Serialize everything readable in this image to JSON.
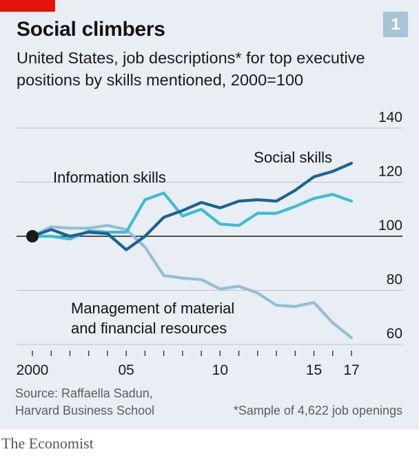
{
  "header": {
    "title": "Social climbers",
    "chart_number": "1",
    "subtitle_line1": "United States, job descriptions* for top executive",
    "subtitle_line2": "positions by skills mentioned, 2000=100"
  },
  "footer": {
    "source_line1": "Source: Raffaella Sadun,",
    "source_line2": "Harvard Business School",
    "footnote": "*Sample of 4,622 job openings",
    "brand": "The Economist"
  },
  "colors": {
    "background": "#e8eef3",
    "red_tag": "#e3120b",
    "badge": "#a7c4d6",
    "social": "#1a6394",
    "information": "#3ebcd2",
    "management": "#93bed6",
    "baseline": "#1a1a1a",
    "grid": "#b7c3cc"
  },
  "chart_data": {
    "type": "line",
    "title": "Social climbers",
    "xlabel": "",
    "ylabel": "",
    "xlim": [
      2000,
      2017.5
    ],
    "ylim": [
      60,
      140
    ],
    "yticks": [
      60,
      80,
      100,
      120,
      140
    ],
    "ytick_labels": [
      "60",
      "80",
      "100",
      "120",
      "140"
    ],
    "xticks": [
      2000,
      2001,
      2002,
      2003,
      2004,
      2005,
      2006,
      2007,
      2008,
      2009,
      2010,
      2011,
      2012,
      2013,
      2014,
      2015,
      2016,
      2017
    ],
    "xtick_labels": [
      {
        "value": 2000,
        "label": "2000"
      },
      {
        "value": 2005,
        "label": "05"
      },
      {
        "value": 2010,
        "label": "10"
      },
      {
        "value": 2015,
        "label": "15"
      },
      {
        "value": 2017,
        "label": "17"
      }
    ],
    "baseline": 100,
    "grid": true,
    "series": [
      {
        "name": "Social skills",
        "key": "social",
        "x": [
          2000,
          2001,
          2002,
          2003,
          2004,
          2005,
          2006,
          2007,
          2008,
          2009,
          2010,
          2011,
          2012,
          2013,
          2014,
          2015,
          2016,
          2017
        ],
        "values": [
          100,
          102.5,
          100,
          101.5,
          101,
          95,
          100,
          107,
          109.5,
          112.5,
          110.5,
          113,
          113.5,
          113,
          117,
          122,
          124,
          127
        ]
      },
      {
        "name": "Information skills",
        "key": "information",
        "x": [
          2000,
          2001,
          2002,
          2003,
          2004,
          2005,
          2006,
          2007,
          2008,
          2009,
          2010,
          2011,
          2012,
          2013,
          2014,
          2015,
          2016,
          2017
        ],
        "values": [
          100,
          100,
          99,
          102,
          101.5,
          101.5,
          113.5,
          116,
          107.5,
          110,
          104.5,
          104,
          108.5,
          108.5,
          111,
          114,
          115.5,
          113
        ]
      },
      {
        "name": "Management of material and financial resources",
        "key": "management",
        "x": [
          2000,
          2001,
          2002,
          2003,
          2004,
          2005,
          2006,
          2007,
          2008,
          2009,
          2010,
          2011,
          2012,
          2013,
          2014,
          2015,
          2016,
          2017
        ],
        "values": [
          100,
          103.5,
          103,
          103,
          104,
          102.5,
          96,
          85.5,
          84.5,
          84,
          80.5,
          81.5,
          79,
          74.5,
          74,
          75.5,
          68,
          62.5
        ]
      }
    ],
    "annotations": [
      {
        "series": "social",
        "text": "Social skills"
      },
      {
        "series": "information",
        "text": "Information skills"
      },
      {
        "series": "management",
        "lines": [
          "Management of material",
          "and financial resources"
        ]
      }
    ],
    "start_marker": {
      "x": 2000,
      "y": 100
    }
  }
}
